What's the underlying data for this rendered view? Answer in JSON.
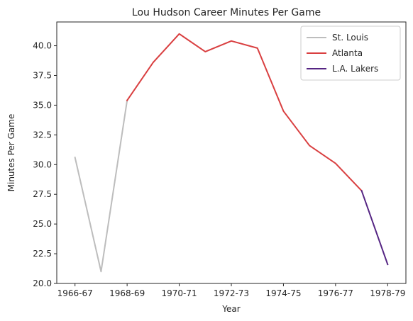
{
  "chart_data": {
    "type": "line",
    "title": "Lou Hudson Career Minutes Per Game",
    "xlabel": "Year",
    "ylabel": "Minutes Per Game",
    "x_index": [
      0,
      1,
      2,
      3,
      4,
      5,
      6,
      7,
      8,
      9,
      10,
      11,
      12
    ],
    "x_tick_labels": [
      "1966-67",
      "1968-69",
      "1970-71",
      "1972-73",
      "1974-75",
      "1976-77",
      "1978-79"
    ],
    "x_tick_positions": [
      0,
      2,
      4,
      6,
      8,
      10,
      12
    ],
    "xlim": [
      -0.7,
      12.7
    ],
    "ylim": [
      20.0,
      42.0
    ],
    "y_ticks": [
      20.0,
      22.5,
      25.0,
      27.5,
      30.0,
      32.5,
      35.0,
      37.5,
      40.0
    ],
    "y_tick_labels": [
      "20.0",
      "22.5",
      "25.0",
      "27.5",
      "30.0",
      "32.5",
      "35.0",
      "37.5",
      "40.0"
    ],
    "legend_position": "top-right",
    "series": [
      {
        "name": "St. Louis",
        "color": "#bdbdbd",
        "x": [
          0,
          1,
          2
        ],
        "y": [
          30.6,
          21.0,
          35.4
        ]
      },
      {
        "name": "Atlanta",
        "color": "#d93f40",
        "x": [
          2,
          3,
          4,
          5,
          6,
          7,
          8,
          9,
          10,
          11
        ],
        "y": [
          35.4,
          38.6,
          41.0,
          39.5,
          40.4,
          39.8,
          34.5,
          31.6,
          30.1,
          27.8
        ]
      },
      {
        "name": "L.A. Lakers",
        "color": "#552583",
        "x": [
          11,
          12
        ],
        "y": [
          27.8,
          21.6
        ]
      }
    ]
  }
}
